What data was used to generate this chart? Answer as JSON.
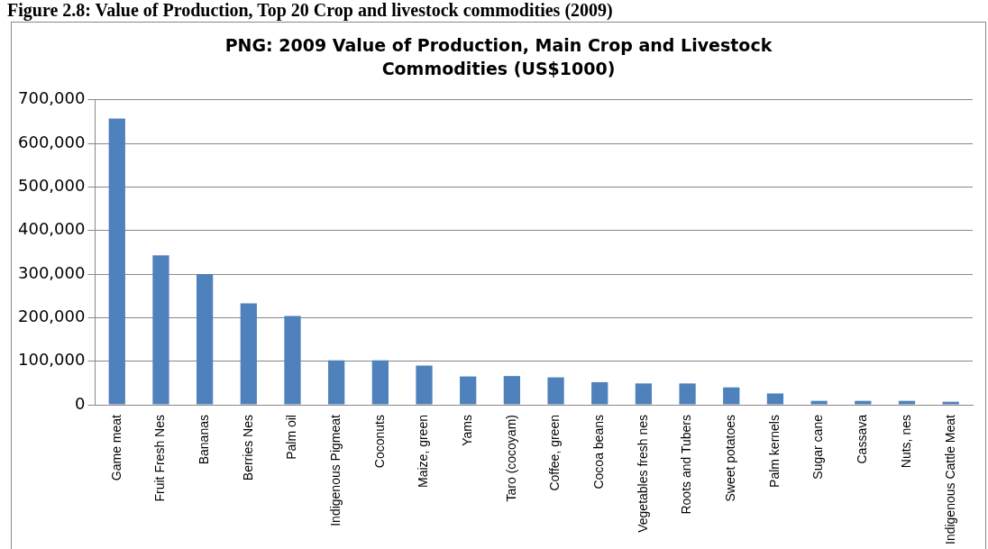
{
  "chart_data": {
    "type": "bar",
    "title": "PNG: 2009 Value of Production, Main Crop and Livestock Commodities (US$1000)",
    "annotations": [
      "Figure 2.8: Value of Production, Top 20 Crop and livestock commodities (2009)"
    ],
    "categories": [
      "Game meat",
      "Fruit Fresh Nes",
      "Bananas",
      "Berries Nes",
      "Palm oil",
      "Indigenous Pigmeat",
      "Coconuts",
      "Maize, green",
      "Yams",
      "Taro (cocoyam)",
      "Coffee, green",
      "Cocoa beans",
      "Vegetables fresh nes",
      "Roots and Tubers",
      "Sweet potatoes",
      "Palm kernels",
      "Sugar cane",
      "Cassava",
      "Nuts, nes",
      "Indigenous Cattle Meat"
    ],
    "values": [
      657000,
      343000,
      300000,
      233000,
      204000,
      102000,
      102000,
      90000,
      65000,
      66000,
      63000,
      52000,
      49000,
      49000,
      40000,
      26000,
      9000,
      9000,
      9000,
      7000
    ],
    "color": "#4f81bd",
    "ylim": [
      0,
      700000
    ],
    "yticks": [
      0,
      {
        "value": 100000,
        "label": "100,000"
      },
      {
        "value": 200000,
        "label": "200,000"
      },
      {
        "value": 300000,
        "label": "300,000"
      },
      {
        "value": 400000,
        "label": "400,000"
      },
      {
        "value": 500000,
        "label": "500,000"
      },
      {
        "value": 600000,
        "label": "600,000"
      },
      {
        "value": 700000,
        "label": "700,000"
      }
    ],
    "grid": "y"
  }
}
